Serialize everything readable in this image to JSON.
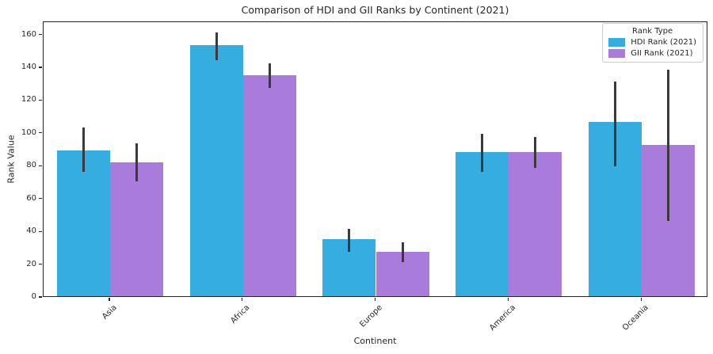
{
  "chart_data": {
    "type": "bar",
    "title": "Comparison of HDI and GII Ranks by Continent (2021)",
    "xlabel": "Continent",
    "ylabel": "Rank Value",
    "categories": [
      "Asia",
      "Africa",
      "Europe",
      "America",
      "Oceania"
    ],
    "series": [
      {
        "name": "HDI Rank (2021)",
        "color": "#35ade0",
        "values": [
          89,
          153,
          35,
          88,
          106
        ],
        "error_low": [
          76,
          144,
          27,
          76,
          79
        ],
        "error_high": [
          103,
          161,
          41,
          99,
          131
        ]
      },
      {
        "name": "GII Rank (2021)",
        "color": "#a97cdc",
        "values": [
          81.5,
          134.5,
          27,
          88,
          92
        ],
        "error_low": [
          70,
          127,
          21,
          78,
          46
        ],
        "error_high": [
          93,
          142,
          33,
          97,
          138
        ]
      }
    ],
    "ylim": [
      0,
      168
    ],
    "yticks": [
      0,
      20,
      40,
      60,
      80,
      100,
      120,
      140,
      160
    ],
    "legend_title": "Rank Type",
    "legend_position": "upper right",
    "grid": false,
    "error_bar_color": "#3a3a3a",
    "bar_group_width_fraction": 0.8
  }
}
